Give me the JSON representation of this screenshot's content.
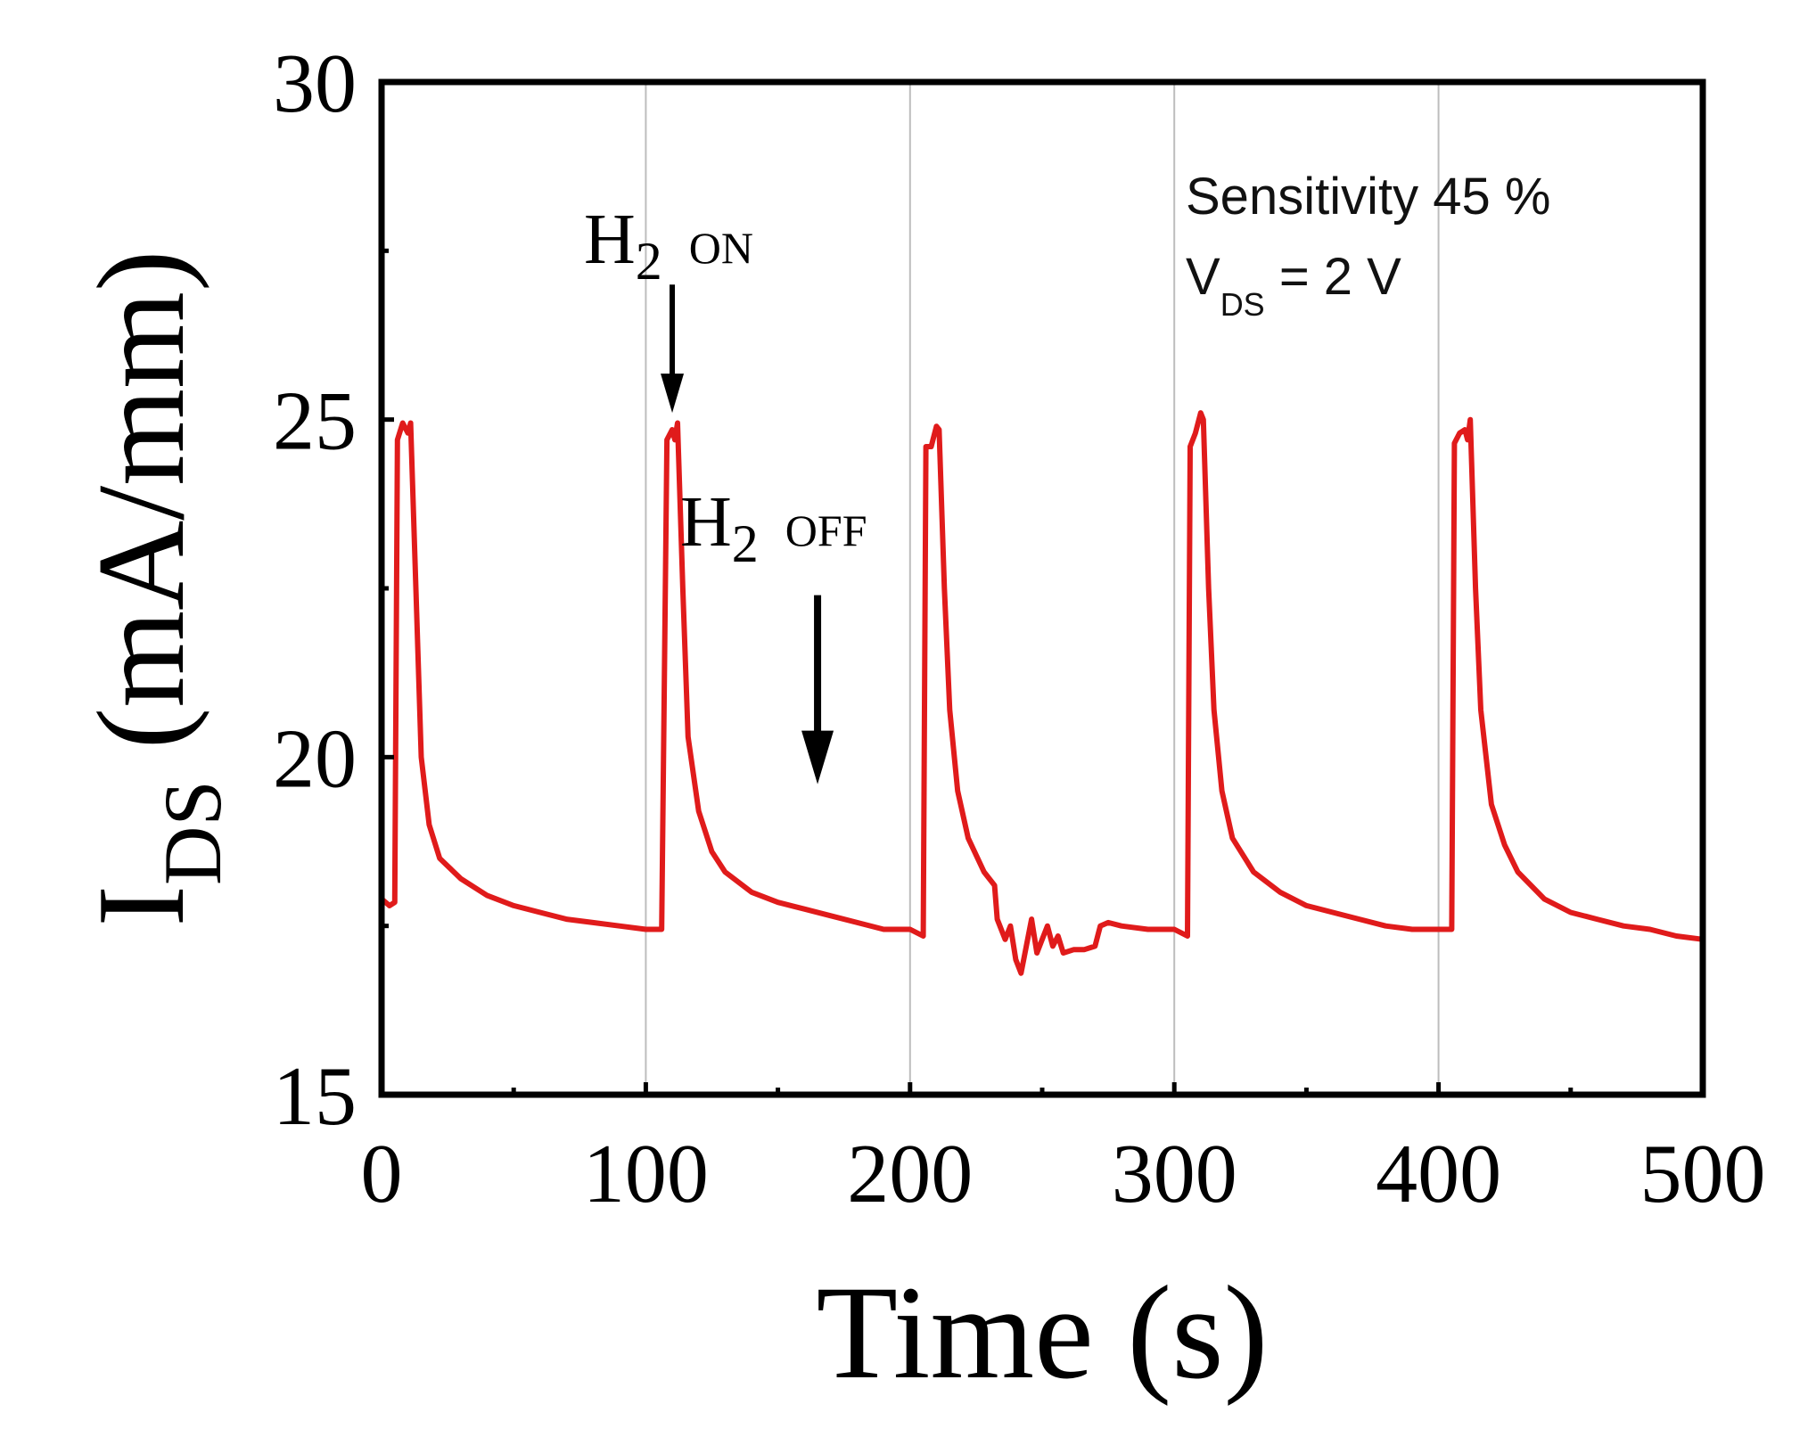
{
  "chart_data": {
    "type": "line",
    "title": "",
    "xlabel": "Time (s)",
    "ylabel": {
      "main": "I",
      "subscript": "DS",
      "units": " (mA/mm)"
    },
    "xlim": [
      0,
      500
    ],
    "ylim": [
      15,
      30
    ],
    "xticks": [
      "0",
      "100",
      "200",
      "300",
      "400",
      "500"
    ],
    "yticks": [
      "15",
      "20",
      "25",
      "30"
    ],
    "grid": {
      "vertical_lines_at": [
        100,
        200,
        300,
        400
      ]
    },
    "series": [
      {
        "name": "I_DS",
        "color": "#e01b1b",
        "points": [
          [
            0,
            17.9
          ],
          [
            3,
            17.8
          ],
          [
            5,
            17.85
          ],
          [
            6,
            24.7
          ],
          [
            8,
            24.95
          ],
          [
            10,
            24.8
          ],
          [
            11,
            24.95
          ],
          [
            13,
            22.5
          ],
          [
            15,
            20.0
          ],
          [
            18,
            19.0
          ],
          [
            22,
            18.5
          ],
          [
            30,
            18.2
          ],
          [
            40,
            17.95
          ],
          [
            50,
            17.8
          ],
          [
            60,
            17.7
          ],
          [
            70,
            17.6
          ],
          [
            80,
            17.55
          ],
          [
            90,
            17.5
          ],
          [
            100,
            17.45
          ],
          [
            106,
            17.45
          ],
          [
            108,
            24.7
          ],
          [
            110,
            24.85
          ],
          [
            111,
            24.7
          ],
          [
            112,
            24.95
          ],
          [
            114,
            22.5
          ],
          [
            116,
            20.3
          ],
          [
            120,
            19.2
          ],
          [
            125,
            18.6
          ],
          [
            130,
            18.3
          ],
          [
            140,
            18.0
          ],
          [
            150,
            17.85
          ],
          [
            160,
            17.75
          ],
          [
            170,
            17.65
          ],
          [
            180,
            17.55
          ],
          [
            190,
            17.45
          ],
          [
            200,
            17.45
          ],
          [
            205,
            17.35
          ],
          [
            206,
            24.6
          ],
          [
            208,
            24.6
          ],
          [
            210,
            24.9
          ],
          [
            211,
            24.85
          ],
          [
            213,
            22.5
          ],
          [
            215,
            20.7
          ],
          [
            218,
            19.5
          ],
          [
            222,
            18.8
          ],
          [
            228,
            18.3
          ],
          [
            232,
            18.1
          ],
          [
            233,
            17.6
          ],
          [
            236,
            17.3
          ],
          [
            238,
            17.5
          ],
          [
            240,
            17.0
          ],
          [
            242,
            16.8
          ],
          [
            244,
            17.2
          ],
          [
            246,
            17.6
          ],
          [
            248,
            17.1
          ],
          [
            250,
            17.3
          ],
          [
            252,
            17.5
          ],
          [
            254,
            17.2
          ],
          [
            256,
            17.35
          ],
          [
            258,
            17.1
          ],
          [
            262,
            17.15
          ],
          [
            266,
            17.15
          ],
          [
            270,
            17.2
          ],
          [
            272,
            17.5
          ],
          [
            275,
            17.55
          ],
          [
            280,
            17.5
          ],
          [
            290,
            17.45
          ],
          [
            300,
            17.45
          ],
          [
            305,
            17.35
          ],
          [
            306,
            24.6
          ],
          [
            308,
            24.8
          ],
          [
            310,
            25.1
          ],
          [
            311,
            25.0
          ],
          [
            313,
            22.5
          ],
          [
            315,
            20.7
          ],
          [
            318,
            19.5
          ],
          [
            322,
            18.8
          ],
          [
            330,
            18.3
          ],
          [
            340,
            18.0
          ],
          [
            350,
            17.8
          ],
          [
            360,
            17.7
          ],
          [
            370,
            17.6
          ],
          [
            380,
            17.5
          ],
          [
            390,
            17.45
          ],
          [
            400,
            17.45
          ],
          [
            405,
            17.45
          ],
          [
            406,
            24.65
          ],
          [
            408,
            24.8
          ],
          [
            410,
            24.85
          ],
          [
            411,
            24.7
          ],
          [
            412,
            25.0
          ],
          [
            414,
            22.5
          ],
          [
            416,
            20.7
          ],
          [
            420,
            19.3
          ],
          [
            425,
            18.7
          ],
          [
            430,
            18.3
          ],
          [
            440,
            17.9
          ],
          [
            450,
            17.7
          ],
          [
            460,
            17.6
          ],
          [
            470,
            17.5
          ],
          [
            480,
            17.45
          ],
          [
            490,
            17.35
          ],
          [
            500,
            17.3
          ]
        ]
      }
    ],
    "annotations": [
      {
        "id": "h2-on",
        "main": "H",
        "subscript": "2",
        "label": "ON",
        "arrow_from": [
          110,
          27.0
        ],
        "arrow_to": [
          110,
          25.1
        ]
      },
      {
        "id": "h2-off",
        "main": "H",
        "subscript": "2",
        "label": "OFF",
        "arrow_from": [
          165,
          22.4
        ],
        "arrow_to": [
          165,
          19.6
        ]
      }
    ],
    "notes": {
      "sensitivity": "Sensitivity 45 %",
      "vds_main": "V",
      "vds_subscript": "DS",
      "vds_value": " = 2 V"
    }
  }
}
